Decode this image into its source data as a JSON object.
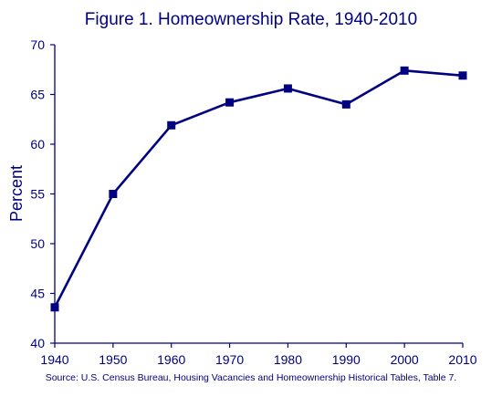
{
  "colors": {
    "series": "#000080",
    "text": "#000080",
    "axis": "#000080",
    "background": "#ffffff"
  },
  "chart_data": {
    "type": "line",
    "title": "Figure 1. Homeownership Rate, 1940-2010",
    "xlabel": "",
    "ylabel": "Percent",
    "x": [
      1940,
      1950,
      1960,
      1970,
      1980,
      1990,
      2000,
      2010
    ],
    "series": [
      {
        "values": [
          43.6,
          55.0,
          61.9,
          64.2,
          65.6,
          64.0,
          67.4,
          66.9
        ],
        "marker": "square"
      }
    ],
    "xlim": [
      1940,
      2010
    ],
    "ylim": [
      40,
      70
    ],
    "x_ticks": [
      "1940",
      "1950",
      "1960",
      "1970",
      "1980",
      "1990",
      "2000",
      "2010"
    ],
    "y_ticks": [
      "40",
      "45",
      "50",
      "55",
      "60",
      "65",
      "70"
    ],
    "grid": false,
    "legend": "none",
    "source": "Source:  U.S. Census Bureau, Housing Vacancies and Homeownership Historical Tables, Table 7."
  }
}
